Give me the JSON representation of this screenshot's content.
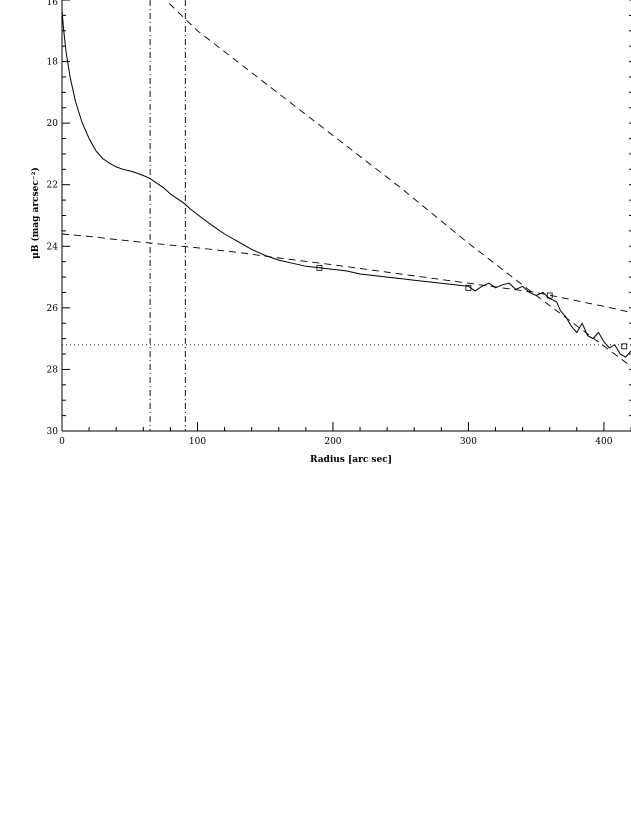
{
  "chart_data": {
    "type": "line",
    "title": "",
    "xlabel": "Radius [arc sec]",
    "ylabel": "μB (mag arcsec⁻²)",
    "xlim": [
      0,
      420
    ],
    "ylim": [
      30,
      16
    ],
    "y_inverted": true,
    "x_ticks": [
      "0",
      "100",
      "200",
      "300",
      "400"
    ],
    "y_ticks": [
      "16",
      "18",
      "20",
      "22",
      "24",
      "26",
      "28",
      "30"
    ],
    "grid": false,
    "legend": "none",
    "series": [
      {
        "style": "solid",
        "x": [
          0,
          1,
          3,
          6,
          10,
          15,
          20,
          25,
          30,
          35,
          40,
          45,
          50,
          55,
          60,
          65,
          70,
          75,
          80,
          85,
          90,
          95,
          100,
          110,
          120,
          130,
          140,
          150,
          160,
          170,
          180,
          190,
          200,
          210,
          220,
          230,
          240,
          250,
          260,
          270,
          280,
          290,
          300,
          305,
          310,
          315,
          320,
          325,
          330,
          335,
          340,
          345,
          350,
          355,
          360,
          365,
          368,
          372,
          376,
          380,
          384,
          388,
          392,
          396,
          400,
          404,
          408,
          412,
          416,
          420
        ],
        "y": [
          16.3,
          16.9,
          17.7,
          18.5,
          19.3,
          20.0,
          20.5,
          20.9,
          21.15,
          21.3,
          21.42,
          21.5,
          21.55,
          21.62,
          21.7,
          21.8,
          21.95,
          22.1,
          22.3,
          22.45,
          22.6,
          22.8,
          22.97,
          23.3,
          23.6,
          23.85,
          24.1,
          24.3,
          24.45,
          24.55,
          24.65,
          24.7,
          24.75,
          24.8,
          24.9,
          24.95,
          25.0,
          25.05,
          25.1,
          25.15,
          25.2,
          25.25,
          25.3,
          25.45,
          25.3,
          25.2,
          25.35,
          25.25,
          25.2,
          25.4,
          25.3,
          25.5,
          25.6,
          25.5,
          25.7,
          25.8,
          26.1,
          26.3,
          26.6,
          26.8,
          26.5,
          26.9,
          27.0,
          26.8,
          27.1,
          27.3,
          27.2,
          27.5,
          27.6,
          27.4
        ]
      },
      {
        "style": "dashed",
        "x": [
          0,
          20,
          40,
          60,
          80,
          100,
          130,
          160,
          200,
          250,
          300,
          350,
          400,
          420
        ],
        "y": [
          23.6,
          23.68,
          23.78,
          23.87,
          23.96,
          24.05,
          24.2,
          24.38,
          24.6,
          24.9,
          25.2,
          25.5,
          25.95,
          26.15
        ]
      },
      {
        "style": "dashed",
        "x": [
          60,
          100,
          150,
          200,
          250,
          300,
          350,
          420
        ],
        "y": [
          15.3,
          17.0,
          18.7,
          20.4,
          22.1,
          23.9,
          25.6,
          27.9
        ]
      },
      {
        "style": "dash-dot",
        "orientation": "vertical",
        "x": [
          65,
          65
        ],
        "y": [
          16,
          30
        ]
      },
      {
        "style": "dash-dot",
        "orientation": "vertical",
        "x": [
          91,
          91
        ],
        "y": [
          16,
          30
        ]
      },
      {
        "style": "dotted",
        "orientation": "horizontal",
        "x": [
          0,
          420
        ],
        "y": [
          27.2,
          27.2
        ]
      }
    ],
    "markers": {
      "shape": "square",
      "x": [
        190,
        300,
        360,
        415
      ],
      "y": [
        24.7,
        25.35,
        25.6,
        27.25
      ]
    }
  }
}
